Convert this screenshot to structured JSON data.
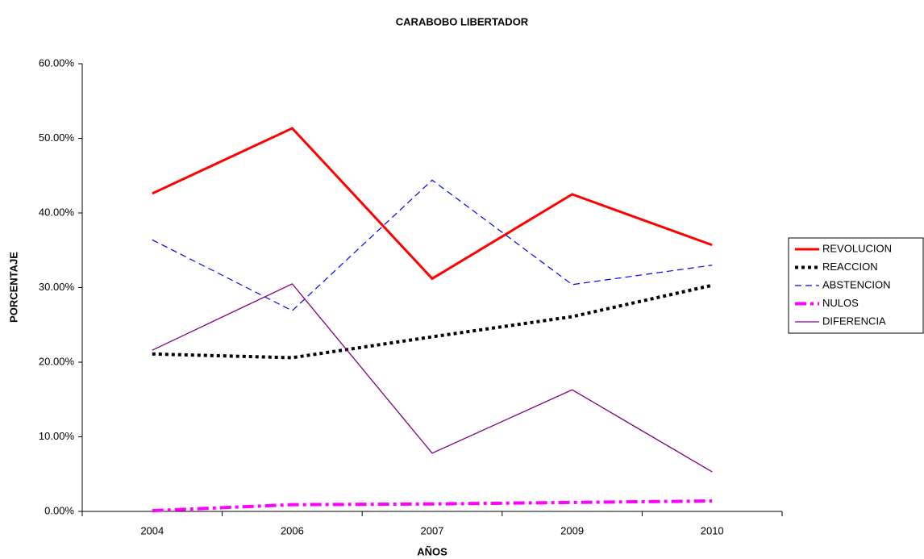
{
  "chart_data": {
    "type": "line",
    "title": "CARABOBO LIBERTADOR",
    "x_label": "AÑOS",
    "y_label": "PORCENTAJE",
    "categories": [
      "2004",
      "2006",
      "2007",
      "2009",
      "2010"
    ],
    "series": [
      {
        "name": "REVOLUCION",
        "color": "#ff0000",
        "values": [
          42.6,
          51.35,
          31.2,
          42.5,
          35.7
        ]
      },
      {
        "name": "REACCION",
        "color": "#000000",
        "values": [
          21.1,
          20.6,
          23.4,
          26.1,
          30.3
        ]
      },
      {
        "name": "ABSTENCION",
        "color": "#0000ff",
        "values": [
          36.4,
          26.9,
          44.4,
          30.4,
          33.0
        ]
      },
      {
        "name": "NULOS",
        "color": "#ff00ff",
        "values": [
          0.1,
          0.9,
          1.0,
          1.2,
          1.4
        ]
      },
      {
        "name": "DIFERENCIA",
        "color": "#800080",
        "values": [
          21.6,
          30.5,
          7.8,
          16.3,
          5.3
        ]
      }
    ],
    "ylim": [
      0,
      60
    ],
    "yticks": [
      {
        "value": 0,
        "label": "0.00%"
      },
      {
        "value": 10,
        "label": "10.00%"
      },
      {
        "value": 20,
        "label": "20.00%"
      },
      {
        "value": 30,
        "label": "30.00%"
      },
      {
        "value": 40,
        "label": "40.00%"
      },
      {
        "value": 50,
        "label": "50.00%"
      },
      {
        "value": 60,
        "label": "60.00%"
      }
    ],
    "legend": "right"
  }
}
